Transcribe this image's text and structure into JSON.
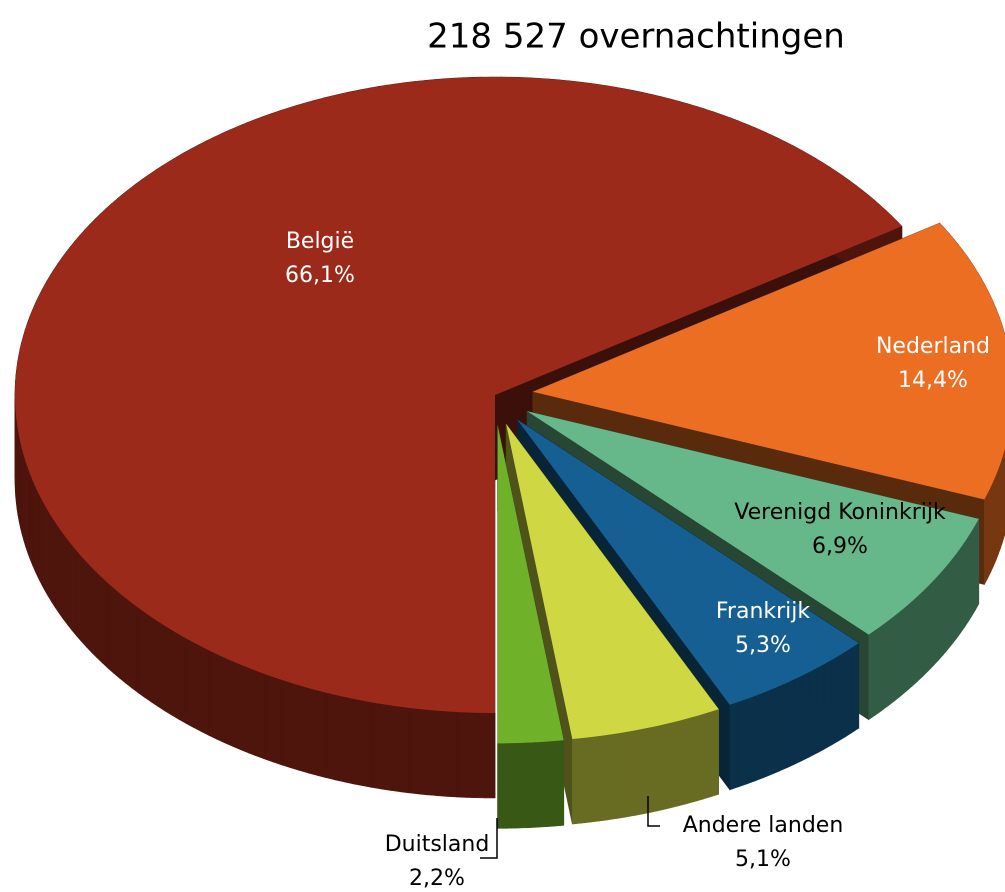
{
  "chart_data": {
    "type": "pie",
    "title": "218 527 overnachtingen",
    "categories": [
      "België",
      "Nederland",
      "Verenigd Koninkrijk",
      "Frankrijk",
      "Andere landen",
      "Duitsland"
    ],
    "values": [
      66.1,
      14.4,
      6.9,
      5.3,
      5.1,
      2.2
    ],
    "value_labels": [
      "66,1%",
      "14,4%",
      "6,9%",
      "5,3%",
      "5,1%",
      "2,2%"
    ],
    "colors": [
      "#9b2a1a",
      "#ec6e22",
      "#66b88a",
      "#155f92",
      "#cfd843",
      "#6fb22a"
    ]
  }
}
